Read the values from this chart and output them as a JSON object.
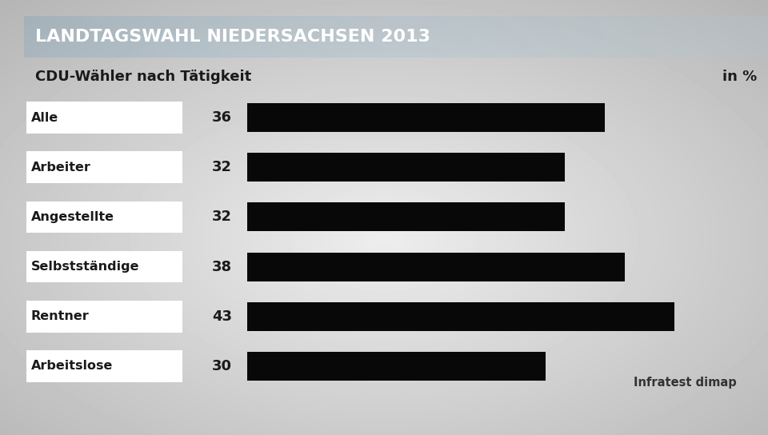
{
  "title": "LANDTAGSWAHL NIEDERSACHSEN 2013",
  "subtitle": "CDU-Wähler nach Tätigkeit",
  "unit_label": "in %",
  "source": "Infratest dimap",
  "categories": [
    "Alle",
    "Arbeiter",
    "Angestellte",
    "Selbstständige",
    "Rentner",
    "Arbeitslose"
  ],
  "values": [
    36,
    32,
    32,
    38,
    43,
    30
  ],
  "bar_color": "#080808",
  "label_bg_color": "#ffffff",
  "title_bg_color": "#1c3f7a",
  "title_text_color": "#ffffff",
  "subtitle_text_color": "#1a1a1a",
  "bg_color_outer": "#aaaaaa",
  "value_label_color": "#1a1a1a",
  "category_label_color": "#1a1a1a",
  "bar_max": 50,
  "title_fontsize": 16,
  "subtitle_fontsize": 13,
  "category_fontsize": 11.5,
  "value_fontsize": 13,
  "source_fontsize": 10.5
}
